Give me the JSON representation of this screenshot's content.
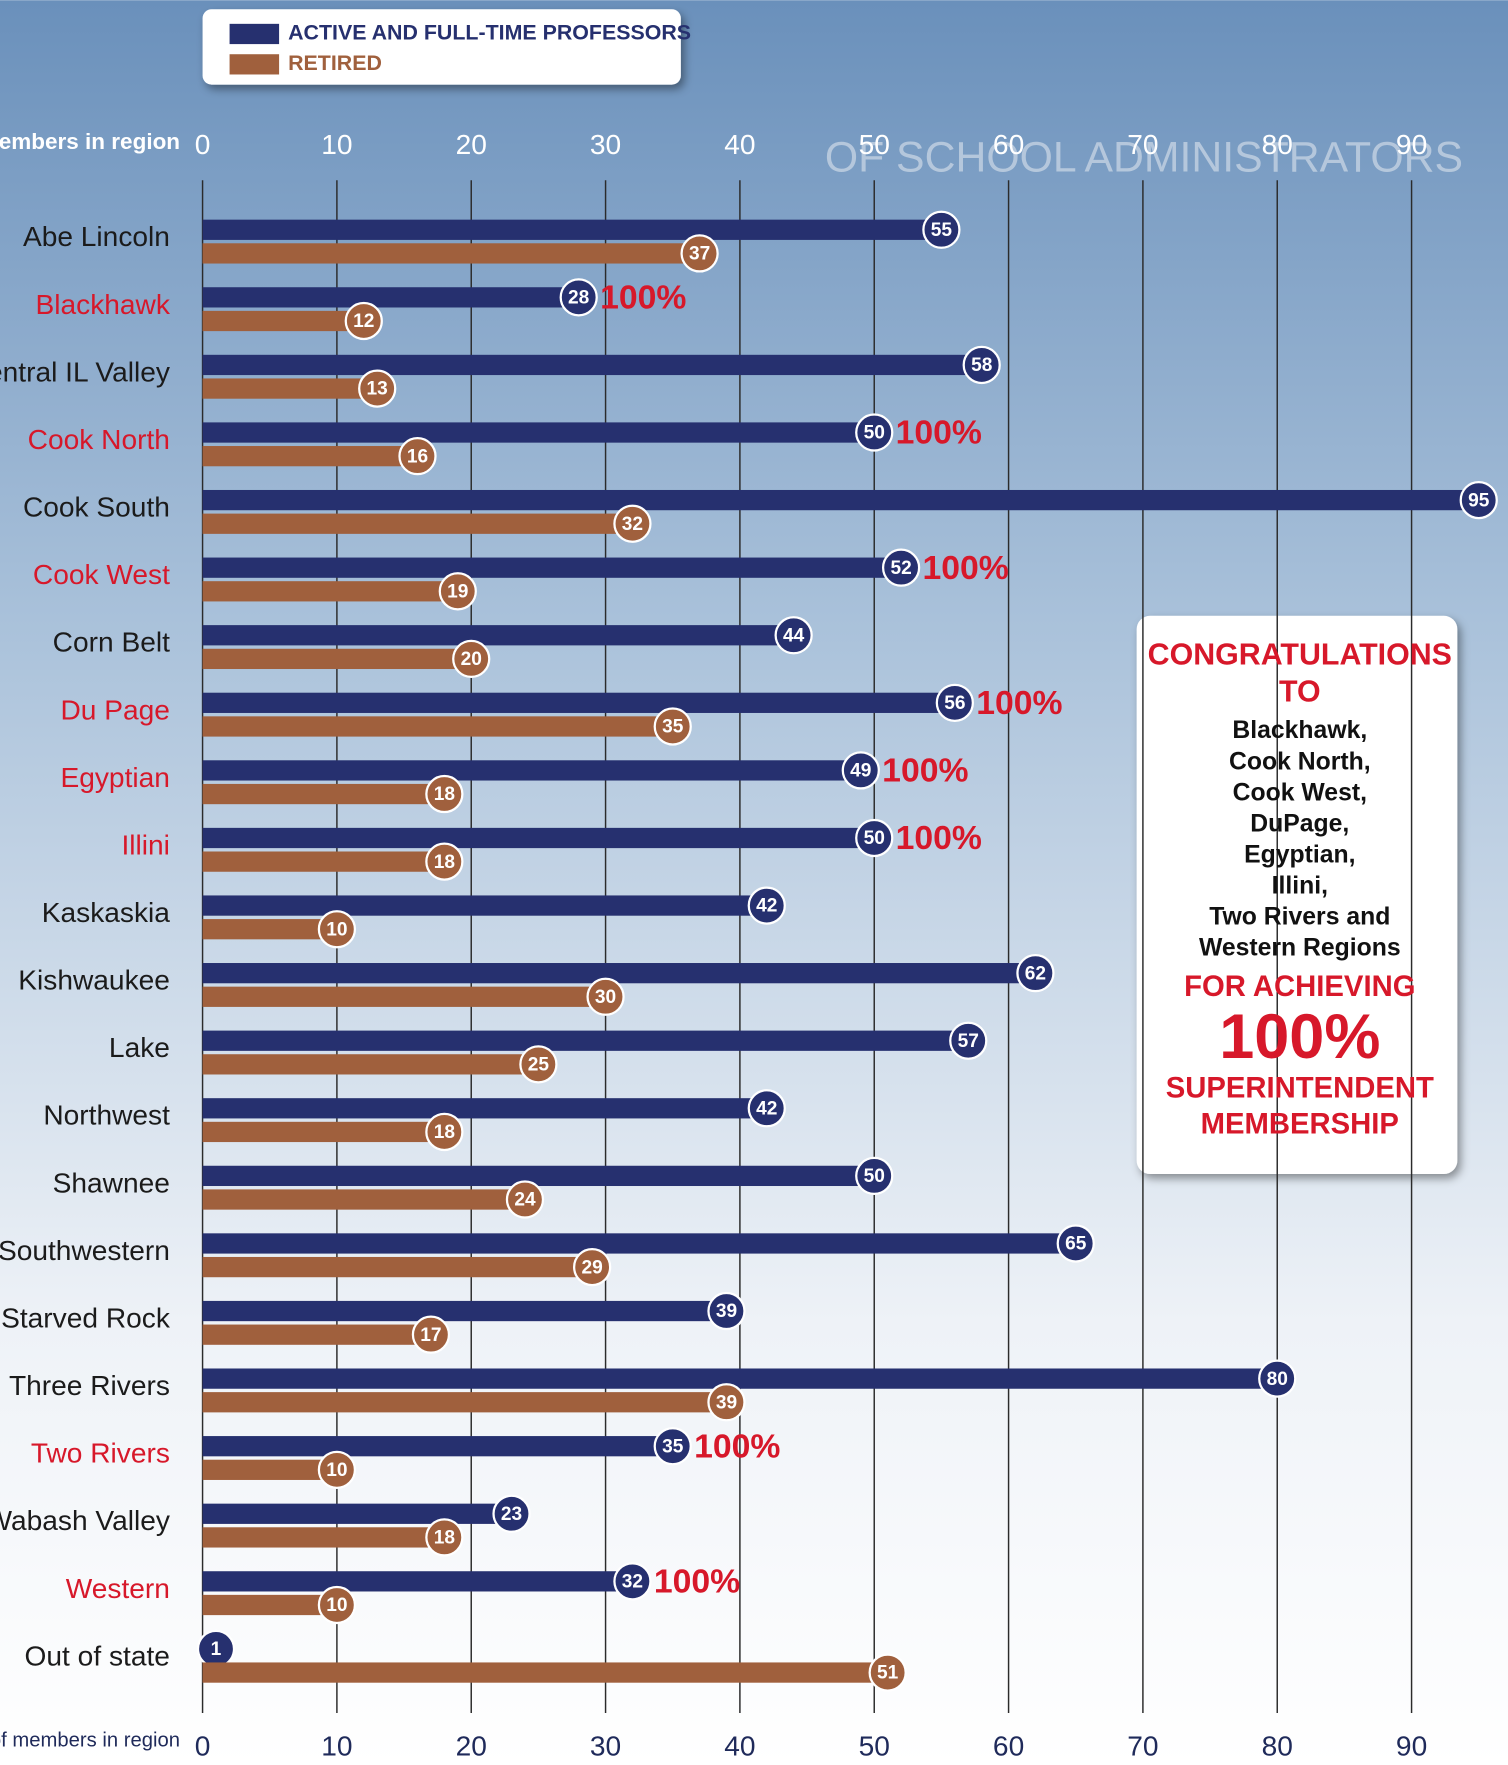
{
  "chart_data": {
    "type": "bar",
    "orientation": "horizontal",
    "axis_label": "#of members in region",
    "watermark": "OF SCHOOL ADMINISTRATORS",
    "legend_position": "top-left",
    "categories": [
      "Abe Lincoln",
      "Blackhawk",
      "Central IL Valley",
      "Cook North",
      "Cook South",
      "Cook West",
      "Corn Belt",
      "Du Page",
      "Egyptian",
      "Illini",
      "Kaskaskia",
      "Kishwaukee",
      "Lake",
      "Northwest",
      "Shawnee",
      "Southwestern",
      "Starved Rock",
      "Three Rivers",
      "Two Rivers",
      "Wabash Valley",
      "Western",
      "Out of state"
    ],
    "series": [
      {
        "name": "ACTIVE AND FULL-TIME PROFESSORS",
        "color": "#26306f",
        "values": [
          55,
          28,
          58,
          50,
          95,
          52,
          44,
          56,
          49,
          50,
          42,
          62,
          57,
          42,
          50,
          65,
          39,
          80,
          35,
          23,
          32,
          1
        ]
      },
      {
        "name": "RETIRED",
        "color": "#a0603d",
        "values": [
          37,
          12,
          13,
          16,
          32,
          19,
          20,
          35,
          18,
          18,
          10,
          30,
          25,
          18,
          24,
          29,
          17,
          39,
          10,
          18,
          10,
          51
        ]
      }
    ],
    "annotations": [
      null,
      "100%",
      null,
      "100%",
      null,
      "100%",
      null,
      "100%",
      "100%",
      "100%",
      null,
      null,
      null,
      null,
      null,
      null,
      null,
      null,
      "100%",
      null,
      "100%",
      null
    ],
    "highlight_color": "#d7182a",
    "xlim": [
      0,
      95
    ],
    "xticks": [
      0,
      10,
      20,
      30,
      40,
      50,
      60,
      70,
      80,
      90
    ],
    "grid": true,
    "callout": {
      "heading": [
        "CONGRATULATIONS",
        "TO"
      ],
      "regions": [
        "Blackhawk,",
        "Cook North,",
        "Cook West,",
        "DuPage,",
        "Egyptian,",
        "Illini,",
        "Two Rivers and",
        "Western Regions"
      ],
      "footer": [
        "FOR ACHIEVING",
        "100%",
        "SUPERINTENDENT",
        "MEMBERSHIP"
      ]
    }
  }
}
